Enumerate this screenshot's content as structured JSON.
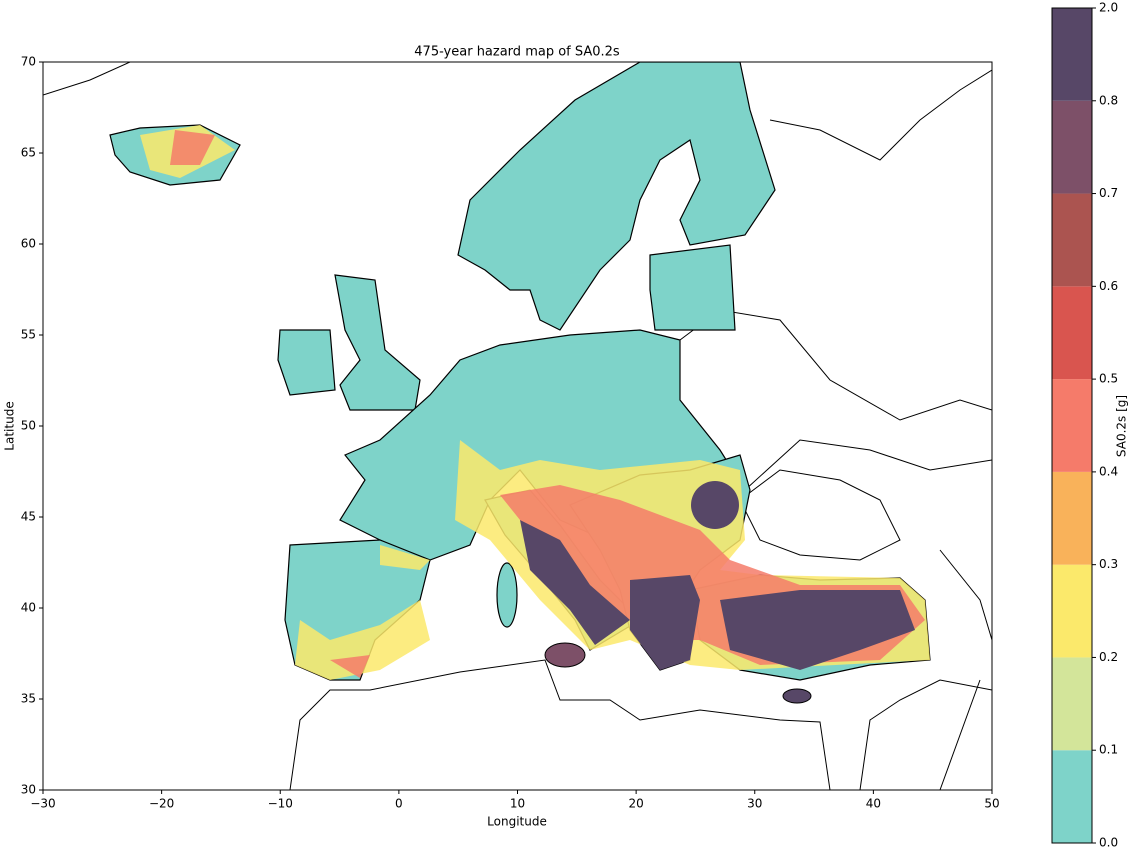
{
  "chart_data": {
    "type": "map",
    "title": "475-year hazard map of SA0.2s",
    "x_label": "Longitude",
    "y_label": "Latitude",
    "xlim": [
      -30,
      50
    ],
    "ylim": [
      30,
      70
    ],
    "xticks": [
      {
        "value": -30,
        "label": "−30"
      },
      {
        "value": -20,
        "label": "−20"
      },
      {
        "value": -10,
        "label": "−10"
      },
      0,
      10,
      20,
      30,
      40,
      50
    ],
    "yticks": [
      30,
      35,
      40,
      45,
      50,
      55,
      60,
      65,
      70
    ],
    "colorbar": {
      "label": "SA0.2s [g]",
      "ticks": [
        {
          "value": 0,
          "label": "0.0"
        },
        0.1,
        0.2,
        0.3,
        0.4,
        0.5,
        0.6,
        0.7,
        0.8,
        {
          "value": 2,
          "label": "2.0"
        }
      ],
      "colors": [
        "#7ed3c9",
        "#d3e59a",
        "#fbe96b",
        "#f9b25a",
        "#f57b6a",
        "#d9554f",
        "#ab5450",
        "#7d5068",
        "#574767"
      ]
    }
  }
}
